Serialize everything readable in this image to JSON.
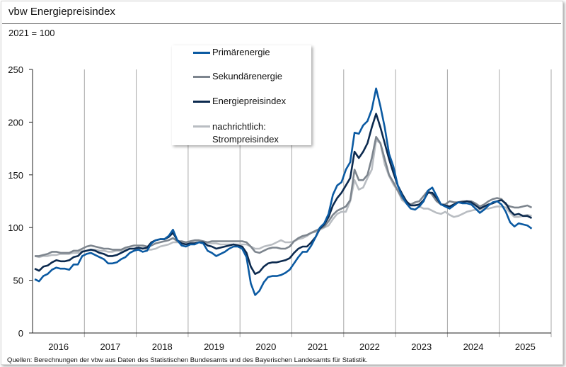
{
  "header": {
    "title": "vbw Energiepreisindex",
    "subtitle": "2021 = 100"
  },
  "footer": {
    "source": "Quellen: Berechnungen der vbw aus Daten des Statistischen Bundesamts und des Bayerischen Landesamts für Statistik."
  },
  "chart_data": {
    "type": "line",
    "title": "vbw Energiepreisindex",
    "subtitle": "2021 = 100",
    "frequency": "monthly",
    "start": "2016-01",
    "end": "2025-08",
    "x_tick_labels": [
      "2016",
      "2017",
      "2018",
      "2019",
      "2020",
      "2021",
      "2022",
      "2023",
      "2024",
      "2025"
    ],
    "y_ticks": [
      0,
      50,
      100,
      150,
      200,
      250
    ],
    "ylim": [
      0,
      250
    ],
    "grid": "vertical year separators",
    "legend_position": "top-center",
    "series": [
      {
        "name": "Primärenergie",
        "color": "#0b5aa2",
        "values": [
          51,
          49,
          54,
          56,
          60,
          62,
          61,
          61,
          60,
          65,
          65,
          73,
          75,
          76,
          74,
          72,
          70,
          66,
          66,
          67,
          70,
          72,
          76,
          78,
          79,
          77,
          78,
          85,
          88,
          89,
          89,
          92,
          98,
          88,
          83,
          82,
          84,
          84,
          86,
          85,
          78,
          76,
          73,
          75,
          77,
          80,
          82,
          82,
          80,
          72,
          47,
          36,
          40,
          48,
          53,
          54,
          54,
          55,
          57,
          60,
          66,
          72,
          77,
          77,
          83,
          91,
          100,
          104,
          113,
          131,
          140,
          143,
          155,
          162,
          190,
          189,
          197,
          201,
          212,
          232,
          215,
          195,
          170,
          158,
          140,
          130,
          123,
          118,
          117,
          120,
          125,
          135,
          138,
          130,
          122,
          120,
          118,
          121,
          124,
          123,
          123,
          122,
          118,
          114,
          117,
          121,
          124,
          125,
          122,
          115,
          105,
          101,
          104,
          103,
          102,
          99
        ]
      },
      {
        "name": "Sekundärenergie",
        "color": "#7d858e",
        "values": [
          73,
          73,
          74,
          75,
          77,
          77,
          76,
          76,
          76,
          78,
          78,
          80,
          82,
          83,
          82,
          81,
          80,
          80,
          79,
          79,
          79,
          81,
          82,
          83,
          83,
          83,
          82,
          83,
          85,
          86,
          87,
          88,
          90,
          87,
          87,
          86,
          87,
          88,
          88,
          87,
          86,
          87,
          87,
          87,
          87,
          87,
          87,
          87,
          87,
          86,
          82,
          77,
          76,
          78,
          80,
          81,
          81,
          80,
          80,
          82,
          87,
          90,
          92,
          93,
          95,
          97,
          99,
          101,
          106,
          112,
          116,
          118,
          120,
          126,
          155,
          145,
          145,
          150,
          166,
          186,
          180,
          165,
          150,
          143,
          135,
          128,
          124,
          122,
          124,
          125,
          130,
          135,
          131,
          125,
          122,
          122,
          125,
          124,
          124,
          125,
          125,
          125,
          123,
          120,
          122,
          125,
          127,
          128,
          127,
          122,
          120,
          119,
          119,
          120,
          121,
          119
        ]
      },
      {
        "name": "Energiepreisindex",
        "color": "#0c2a4f",
        "values": [
          61,
          59,
          63,
          64,
          67,
          69,
          68,
          68,
          69,
          72,
          73,
          77,
          78,
          79,
          78,
          76,
          75,
          73,
          73,
          74,
          76,
          78,
          80,
          80,
          81,
          80,
          81,
          86,
          88,
          89,
          89,
          91,
          95,
          88,
          85,
          84,
          85,
          85,
          86,
          86,
          83,
          82,
          80,
          81,
          82,
          83,
          84,
          83,
          82,
          76,
          63,
          56,
          58,
          63,
          66,
          67,
          67,
          68,
          69,
          71,
          76,
          80,
          82,
          82,
          86,
          91,
          99,
          103,
          110,
          121,
          128,
          133,
          140,
          147,
          172,
          166,
          172,
          180,
          195,
          208,
          195,
          180,
          165,
          152,
          140,
          132,
          125,
          121,
          121,
          122,
          126,
          133,
          133,
          128,
          122,
          121,
          120,
          122,
          124,
          124,
          125,
          124,
          121,
          118,
          120,
          122,
          123,
          125,
          126,
          123,
          116,
          112,
          113,
          111,
          111,
          109
        ]
      },
      {
        "name": "nachrichtlich: Strompreisindex",
        "color": "#b9bdc2",
        "values": [
          73,
          72,
          73,
          73,
          74,
          74,
          75,
          75,
          75,
          76,
          76,
          78,
          78,
          79,
          79,
          78,
          78,
          77,
          77,
          78,
          78,
          79,
          80,
          80,
          80,
          81,
          79,
          79,
          80,
          82,
          83,
          84,
          86,
          86,
          86,
          86,
          86,
          86,
          86,
          85,
          85,
          85,
          85,
          84,
          84,
          84,
          84,
          84,
          84,
          84,
          82,
          80,
          80,
          82,
          83,
          84,
          86,
          88,
          86,
          86,
          87,
          89,
          90,
          92,
          95,
          96,
          98,
          100,
          102,
          108,
          113,
          115,
          115,
          125,
          145,
          136,
          138,
          147,
          155,
          183,
          180,
          160,
          149,
          141,
          135,
          126,
          123,
          121,
          122,
          120,
          118,
          118,
          116,
          114,
          113,
          115,
          112,
          110,
          111,
          113,
          115,
          116,
          117,
          117,
          118,
          118,
          119,
          120,
          120,
          119,
          114,
          110,
          110,
          111,
          112,
          111
        ]
      }
    ]
  },
  "legend": {
    "items": [
      "Primärenergie",
      "Sekundärenergie",
      "Energiepreisindex"
    ],
    "strom_line1": "nachrichtlich:",
    "strom_line2": "Strompreisindex"
  }
}
